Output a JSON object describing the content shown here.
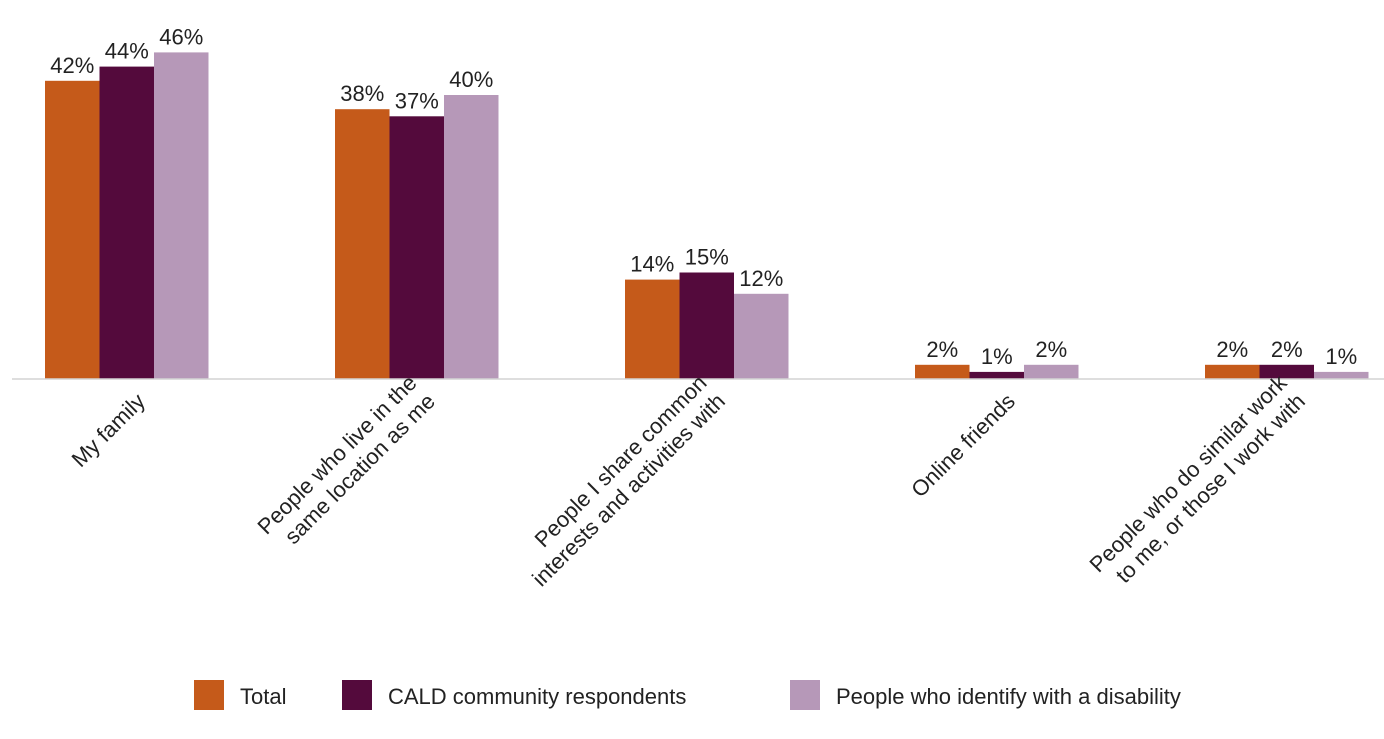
{
  "chart_data": {
    "type": "bar",
    "categories": [
      [
        "My family"
      ],
      [
        "People who live in the",
        "same location as me"
      ],
      [
        "People I share common",
        "interests and activities with"
      ],
      [
        "Online friends"
      ],
      [
        "People who do similar work",
        "to me, or those I work with"
      ]
    ],
    "series": [
      {
        "name": "Total",
        "color": "#C55A1A",
        "values": [
          42,
          38,
          14,
          2,
          2
        ]
      },
      {
        "name": "CALD community respondents",
        "color": "#540A3C",
        "values": [
          44,
          37,
          15,
          1,
          2
        ]
      },
      {
        "name": "People who identify with a disability",
        "color": "#B698B8",
        "values": [
          46,
          40,
          12,
          2,
          1
        ]
      }
    ],
    "value_suffix": "%",
    "ylim": [
      0,
      50
    ],
    "grid": false,
    "legend": "bottom-center"
  }
}
